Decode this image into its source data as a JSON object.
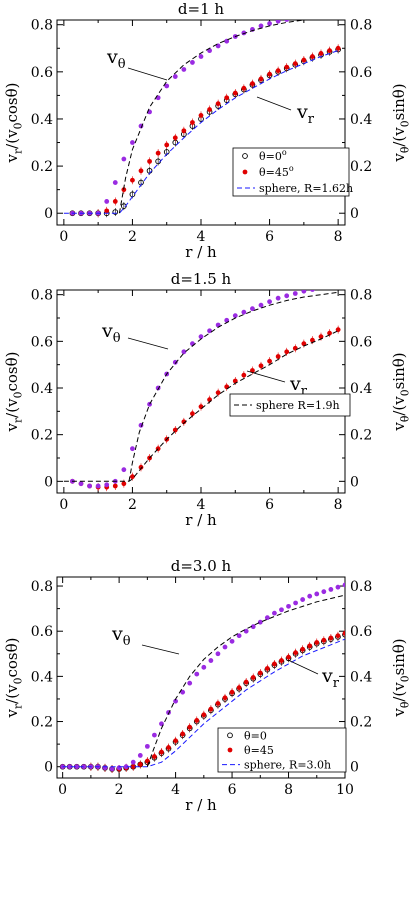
{
  "chart_data": [
    {
      "type": "scatter",
      "title": "d=1 h",
      "xlabel": "r / h",
      "ylabel_left": {
        "main": "v",
        "sub": "r",
        "rest": "/(v",
        "sub2": "0",
        "tail": "cosθ)"
      },
      "ylabel_right": {
        "main": "v",
        "sub": "θ",
        "rest": "/(v",
        "sub2": "0",
        "tail": "sinθ)"
      },
      "xlim": [
        -0.2,
        8.2
      ],
      "ylim": [
        -0.05,
        0.82
      ],
      "xticks": [
        "0",
        "2",
        "4",
        "6",
        "8"
      ],
      "xtick_values": [
        0,
        2,
        4,
        6,
        8
      ],
      "yticks": [
        "0",
        "0.2",
        "0.4",
        "0.6",
        "0.8"
      ],
      "ytick_values": [
        0,
        0.2,
        0.4,
        0.6,
        0.8
      ],
      "annotations": [
        {
          "main": "v",
          "sub": "θ"
        },
        {
          "main": "v",
          "sub": "r"
        }
      ],
      "legend": {
        "placement": "bottom-right",
        "entries": [
          {
            "label": "θ=0",
            "sup": "o",
            "marker": "open-circle"
          },
          {
            "label": "θ=45",
            "sup": "o",
            "marker": "filled-red"
          },
          {
            "label": "sphere, R=1.62h",
            "sup": "",
            "marker": "blue-dash"
          }
        ]
      },
      "series": [
        {
          "name": "θ=0",
          "style": "open-circle",
          "color": "#000000",
          "x": [
            0.25,
            0.5,
            0.75,
            1.0,
            1.25,
            1.5,
            1.75,
            2.0,
            2.25,
            2.5,
            2.75,
            3.0,
            3.25,
            3.5,
            3.75,
            4.0,
            4.25,
            4.5,
            4.75,
            5.0,
            5.25,
            5.5,
            5.75,
            6.0,
            6.25,
            6.5,
            6.75,
            7.0,
            7.25,
            7.5,
            7.75,
            8.0
          ],
          "y": [
            0.0,
            0.0,
            0.0,
            0.0,
            0.0,
            0.005,
            0.03,
            0.08,
            0.13,
            0.18,
            0.22,
            0.26,
            0.3,
            0.335,
            0.37,
            0.4,
            0.43,
            0.455,
            0.48,
            0.505,
            0.525,
            0.545,
            0.565,
            0.585,
            0.6,
            0.615,
            0.63,
            0.645,
            0.66,
            0.672,
            0.685,
            0.695
          ]
        },
        {
          "name": "θ=45",
          "style": "filled-red",
          "color": "#e00000",
          "x": [
            0.25,
            0.5,
            0.75,
            1.0,
            1.25,
            1.5,
            1.75,
            2.0,
            2.25,
            2.5,
            2.75,
            3.0,
            3.25,
            3.5,
            3.75,
            4.0,
            4.25,
            4.5,
            4.75,
            5.0,
            5.25,
            5.5,
            5.75,
            6.0,
            6.25,
            6.5,
            6.75,
            7.0,
            7.25,
            7.5,
            7.75,
            8.0
          ],
          "y": [
            0.0,
            0.0,
            0.0,
            0.0,
            0.01,
            0.05,
            0.1,
            0.14,
            0.18,
            0.22,
            0.255,
            0.29,
            0.32,
            0.35,
            0.385,
            0.415,
            0.44,
            0.465,
            0.49,
            0.51,
            0.53,
            0.55,
            0.57,
            0.59,
            0.605,
            0.62,
            0.635,
            0.65,
            0.665,
            0.678,
            0.69,
            0.7
          ]
        },
        {
          "name": "v_θ",
          "style": "filled-purple",
          "color": "#9a2be2",
          "x": [
            0.25,
            0.5,
            0.75,
            1.0,
            1.25,
            1.5,
            1.75,
            2.0,
            2.25,
            2.5,
            2.75,
            3.0,
            3.25,
            3.5,
            3.75,
            4.0,
            4.25,
            4.5,
            4.75,
            5.0,
            5.25,
            5.5,
            5.75,
            6.0,
            6.25,
            6.5
          ],
          "y": [
            0.0,
            0.0,
            0.0,
            0.0,
            0.05,
            0.13,
            0.23,
            0.3,
            0.37,
            0.43,
            0.49,
            0.54,
            0.58,
            0.61,
            0.64,
            0.665,
            0.69,
            0.71,
            0.73,
            0.75,
            0.765,
            0.78,
            0.795,
            0.805,
            0.815,
            0.822
          ]
        },
        {
          "name": "sphere, R=1.62h",
          "style": "blue-dash",
          "color": "#1a1aff",
          "x": [
            0,
            1.62,
            1.8,
            2.0,
            2.5,
            3.0,
            3.5,
            4.0,
            4.5,
            5.0,
            5.5,
            6.0,
            6.5,
            7.0,
            7.5,
            8.0
          ],
          "y": [
            0,
            0,
            0.03,
            0.07,
            0.17,
            0.25,
            0.32,
            0.385,
            0.44,
            0.49,
            0.53,
            0.57,
            0.605,
            0.635,
            0.665,
            0.69
          ]
        },
        {
          "name": "v_θ sphere",
          "style": "black-dash",
          "color": "#000000",
          "x": [
            1.62,
            1.8,
            2.0,
            2.5,
            3.0,
            3.5,
            4.0,
            4.5,
            5.0,
            5.5,
            6.0,
            6.5,
            7.0,
            7.5,
            8.0
          ],
          "y": [
            0,
            0.15,
            0.27,
            0.45,
            0.56,
            0.63,
            0.68,
            0.72,
            0.75,
            0.775,
            0.795,
            0.81,
            0.82,
            0.826,
            0.83
          ]
        }
      ]
    },
    {
      "type": "scatter",
      "title": "d=1.5 h",
      "xlabel": "r / h",
      "ylabel_left": {
        "main": "v",
        "sub": "r",
        "rest": "/(v",
        "sub2": "0",
        "tail": "cosθ)"
      },
      "ylabel_right": {
        "main": "v",
        "sub": "θ",
        "rest": "/(v",
        "sub2": "0",
        "tail": "sinθ)"
      },
      "xlim": [
        -0.2,
        8.2
      ],
      "ylim": [
        -0.05,
        0.82
      ],
      "xticks": [
        "0",
        "2",
        "4",
        "6",
        "8"
      ],
      "xtick_values": [
        0,
        2,
        4,
        6,
        8
      ],
      "yticks": [
        "0",
        "0.2",
        "0.4",
        "0.6",
        "0.8"
      ],
      "ytick_values": [
        0,
        0.2,
        0.4,
        0.6,
        0.8
      ],
      "annotations": [
        {
          "main": "v",
          "sub": "θ"
        },
        {
          "main": "v",
          "sub": "r"
        }
      ],
      "legend": {
        "placement": "middle-right",
        "entries": [
          {
            "label": "sphere R=1.9h",
            "sup": "",
            "marker": "black-dash"
          }
        ]
      },
      "series": [
        {
          "name": "v_r",
          "style": "filled-red",
          "color": "#e00000",
          "x": [
            0.25,
            0.5,
            0.75,
            1.0,
            1.25,
            1.5,
            1.75,
            2.0,
            2.25,
            2.5,
            2.75,
            3.0,
            3.25,
            3.5,
            3.75,
            4.0,
            4.25,
            4.5,
            4.75,
            5.0,
            5.25,
            5.5,
            5.75,
            6.0,
            6.25,
            6.5,
            6.75,
            7.0,
            7.25,
            7.5,
            7.75,
            8.0
          ],
          "y": [
            0.0,
            -0.01,
            -0.02,
            -0.025,
            -0.025,
            -0.02,
            -0.01,
            0.02,
            0.06,
            0.1,
            0.14,
            0.18,
            0.22,
            0.255,
            0.29,
            0.32,
            0.35,
            0.38,
            0.405,
            0.43,
            0.455,
            0.475,
            0.495,
            0.515,
            0.535,
            0.555,
            0.57,
            0.59,
            0.605,
            0.62,
            0.635,
            0.65
          ]
        },
        {
          "name": "v_θ",
          "style": "filled-purple",
          "color": "#9a2be2",
          "x": [
            0.25,
            0.5,
            0.75,
            1.0,
            1.25,
            1.5,
            1.75,
            2.0,
            2.25,
            2.5,
            2.75,
            3.0,
            3.25,
            3.5,
            3.75,
            4.0,
            4.25,
            4.5,
            4.75,
            5.0,
            5.25,
            5.5,
            5.75,
            6.0,
            6.25,
            6.5,
            6.75,
            7.0,
            7.25
          ],
          "y": [
            0.0,
            -0.01,
            -0.02,
            -0.02,
            -0.015,
            0.0,
            0.05,
            0.14,
            0.24,
            0.33,
            0.4,
            0.46,
            0.51,
            0.555,
            0.59,
            0.62,
            0.645,
            0.67,
            0.69,
            0.71,
            0.725,
            0.74,
            0.755,
            0.77,
            0.785,
            0.795,
            0.805,
            0.815,
            0.822
          ]
        },
        {
          "name": "sphere R=1.9h",
          "style": "black-dash",
          "color": "#000000",
          "x": [
            0,
            1.9,
            2.0,
            2.5,
            3.0,
            3.5,
            4.0,
            4.5,
            5.0,
            5.5,
            6.0,
            6.5,
            7.0,
            7.5,
            8.0
          ],
          "y": [
            0,
            0,
            0.01,
            0.1,
            0.18,
            0.25,
            0.31,
            0.37,
            0.42,
            0.46,
            0.5,
            0.545,
            0.58,
            0.61,
            0.645
          ]
        },
        {
          "name": "v_θ sphere",
          "style": "black-dash",
          "color": "#000000",
          "x": [
            1.9,
            2.0,
            2.2,
            2.5,
            3.0,
            3.5,
            4.0,
            4.5,
            5.0,
            5.5,
            6.0,
            6.5,
            7.0,
            7.5,
            8.0
          ],
          "y": [
            0,
            0.08,
            0.21,
            0.33,
            0.46,
            0.55,
            0.61,
            0.66,
            0.7,
            0.73,
            0.755,
            0.775,
            0.79,
            0.8,
            0.81
          ]
        }
      ]
    },
    {
      "type": "scatter",
      "title": "d=3.0 h",
      "xlabel": "r / h",
      "ylabel_left": {
        "main": "v",
        "sub": "r",
        "rest": "/(v",
        "sub2": "0",
        "tail": "cosθ)"
      },
      "ylabel_right": {
        "main": "v",
        "sub": "θ",
        "rest": "/(v",
        "sub2": "0",
        "tail": "sinθ)"
      },
      "xlim": [
        -0.2,
        10.0
      ],
      "ylim": [
        -0.05,
        0.84
      ],
      "xticks": [
        "0",
        "2",
        "4",
        "6",
        "8",
        "10"
      ],
      "xtick_values": [
        0,
        2,
        4,
        6,
        8,
        10
      ],
      "yticks": [
        "0",
        "0.2",
        "0.4",
        "0.6",
        "0.8"
      ],
      "ytick_values": [
        0,
        0.2,
        0.4,
        0.6,
        0.8
      ],
      "annotations": [
        {
          "main": "v",
          "sub": "θ"
        },
        {
          "main": "v",
          "sub": "r"
        }
      ],
      "legend": {
        "placement": "bottom-right",
        "entries": [
          {
            "label": "θ=0",
            "sup": "",
            "marker": "open-circle"
          },
          {
            "label": "θ=45",
            "sup": "",
            "marker": "filled-red"
          },
          {
            "label": "sphere, R=3.0h",
            "sup": "",
            "marker": "blue-dash"
          }
        ]
      },
      "series": [
        {
          "name": "θ=0",
          "style": "open-circle",
          "color": "#000000",
          "x": [
            0,
            0.25,
            0.5,
            0.75,
            1.0,
            1.25,
            1.5,
            1.75,
            2.0,
            2.25,
            2.5,
            2.75,
            3.0,
            3.25,
            3.5,
            3.75,
            4.0,
            4.25,
            4.5,
            4.75,
            5.0,
            5.25,
            5.5,
            5.75,
            6.0,
            6.25,
            6.5,
            6.75,
            7.0,
            7.25,
            7.5,
            7.75,
            8.0,
            8.25,
            8.5,
            8.75,
            9.0,
            9.25,
            9.5,
            9.75,
            10.0
          ],
          "y": [
            0,
            0,
            0,
            0,
            0,
            0,
            -0.005,
            -0.01,
            -0.01,
            -0.005,
            0.0,
            0.01,
            0.02,
            0.04,
            0.06,
            0.08,
            0.11,
            0.14,
            0.17,
            0.2,
            0.225,
            0.25,
            0.275,
            0.3,
            0.325,
            0.345,
            0.37,
            0.39,
            0.41,
            0.43,
            0.45,
            0.465,
            0.48,
            0.5,
            0.515,
            0.53,
            0.545,
            0.555,
            0.565,
            0.575,
            0.585
          ]
        },
        {
          "name": "θ=45",
          "style": "filled-red",
          "color": "#e00000",
          "x": [
            0,
            0.25,
            0.5,
            0.75,
            1.0,
            1.25,
            1.5,
            1.75,
            2.0,
            2.25,
            2.5,
            2.75,
            3.0,
            3.25,
            3.5,
            3.75,
            4.0,
            4.25,
            4.5,
            4.75,
            5.0,
            5.25,
            5.5,
            5.75,
            6.0,
            6.25,
            6.5,
            6.75,
            7.0,
            7.25,
            7.5,
            7.75,
            8.0,
            8.25,
            8.5,
            8.75,
            9.0,
            9.25,
            9.5,
            9.75,
            10.0
          ],
          "y": [
            0,
            0,
            0,
            0,
            0,
            0,
            -0.005,
            -0.01,
            -0.01,
            -0.005,
            0.0,
            0.01,
            0.025,
            0.045,
            0.065,
            0.085,
            0.115,
            0.145,
            0.175,
            0.205,
            0.23,
            0.255,
            0.28,
            0.305,
            0.33,
            0.35,
            0.375,
            0.395,
            0.415,
            0.435,
            0.455,
            0.47,
            0.485,
            0.505,
            0.52,
            0.535,
            0.55,
            0.56,
            0.57,
            0.58,
            0.59
          ]
        },
        {
          "name": "v_θ",
          "style": "filled-purple",
          "color": "#9a2be2",
          "x": [
            0,
            0.25,
            0.5,
            0.75,
            1.0,
            1.25,
            1.5,
            1.75,
            2.0,
            2.25,
            2.5,
            2.75,
            3.0,
            3.25,
            3.5,
            3.75,
            4.0,
            4.25,
            4.5,
            4.75,
            5.0,
            5.25,
            5.5,
            5.75,
            6.0,
            6.25,
            6.5,
            6.75,
            7.0,
            7.25,
            7.5,
            7.75,
            8.0,
            8.25,
            8.5,
            8.75,
            9.0,
            9.25,
            9.5,
            9.75,
            10.0
          ],
          "y": [
            0,
            0,
            0,
            0,
            0,
            0,
            -0.005,
            -0.01,
            -0.005,
            0.0,
            0.02,
            0.05,
            0.09,
            0.14,
            0.19,
            0.24,
            0.29,
            0.33,
            0.37,
            0.41,
            0.44,
            0.47,
            0.5,
            0.53,
            0.555,
            0.58,
            0.6,
            0.62,
            0.64,
            0.66,
            0.68,
            0.695,
            0.71,
            0.725,
            0.74,
            0.755,
            0.765,
            0.775,
            0.785,
            0.795,
            0.805
          ]
        },
        {
          "name": "sphere, R=3.0h",
          "style": "blue-dash",
          "color": "#1a1aff",
          "x": [
            0,
            3.0,
            3.5,
            4.0,
            4.5,
            5.0,
            5.5,
            6.0,
            6.5,
            7.0,
            7.5,
            8.0,
            8.5,
            9.0,
            9.5,
            10.0
          ],
          "y": [
            0,
            0,
            0.02,
            0.07,
            0.13,
            0.19,
            0.24,
            0.29,
            0.34,
            0.38,
            0.42,
            0.455,
            0.49,
            0.515,
            0.54,
            0.565
          ]
        },
        {
          "name": "v_θ sphere",
          "style": "black-dash",
          "color": "#000000",
          "x": [
            3.0,
            3.2,
            3.5,
            4.0,
            4.5,
            5.0,
            5.5,
            6.0,
            6.5,
            7.0,
            7.5,
            8.0,
            8.5,
            9.0,
            9.5,
            10.0
          ],
          "y": [
            0,
            0.07,
            0.17,
            0.3,
            0.4,
            0.475,
            0.53,
            0.575,
            0.61,
            0.64,
            0.665,
            0.69,
            0.71,
            0.73,
            0.745,
            0.76
          ]
        }
      ]
    }
  ]
}
